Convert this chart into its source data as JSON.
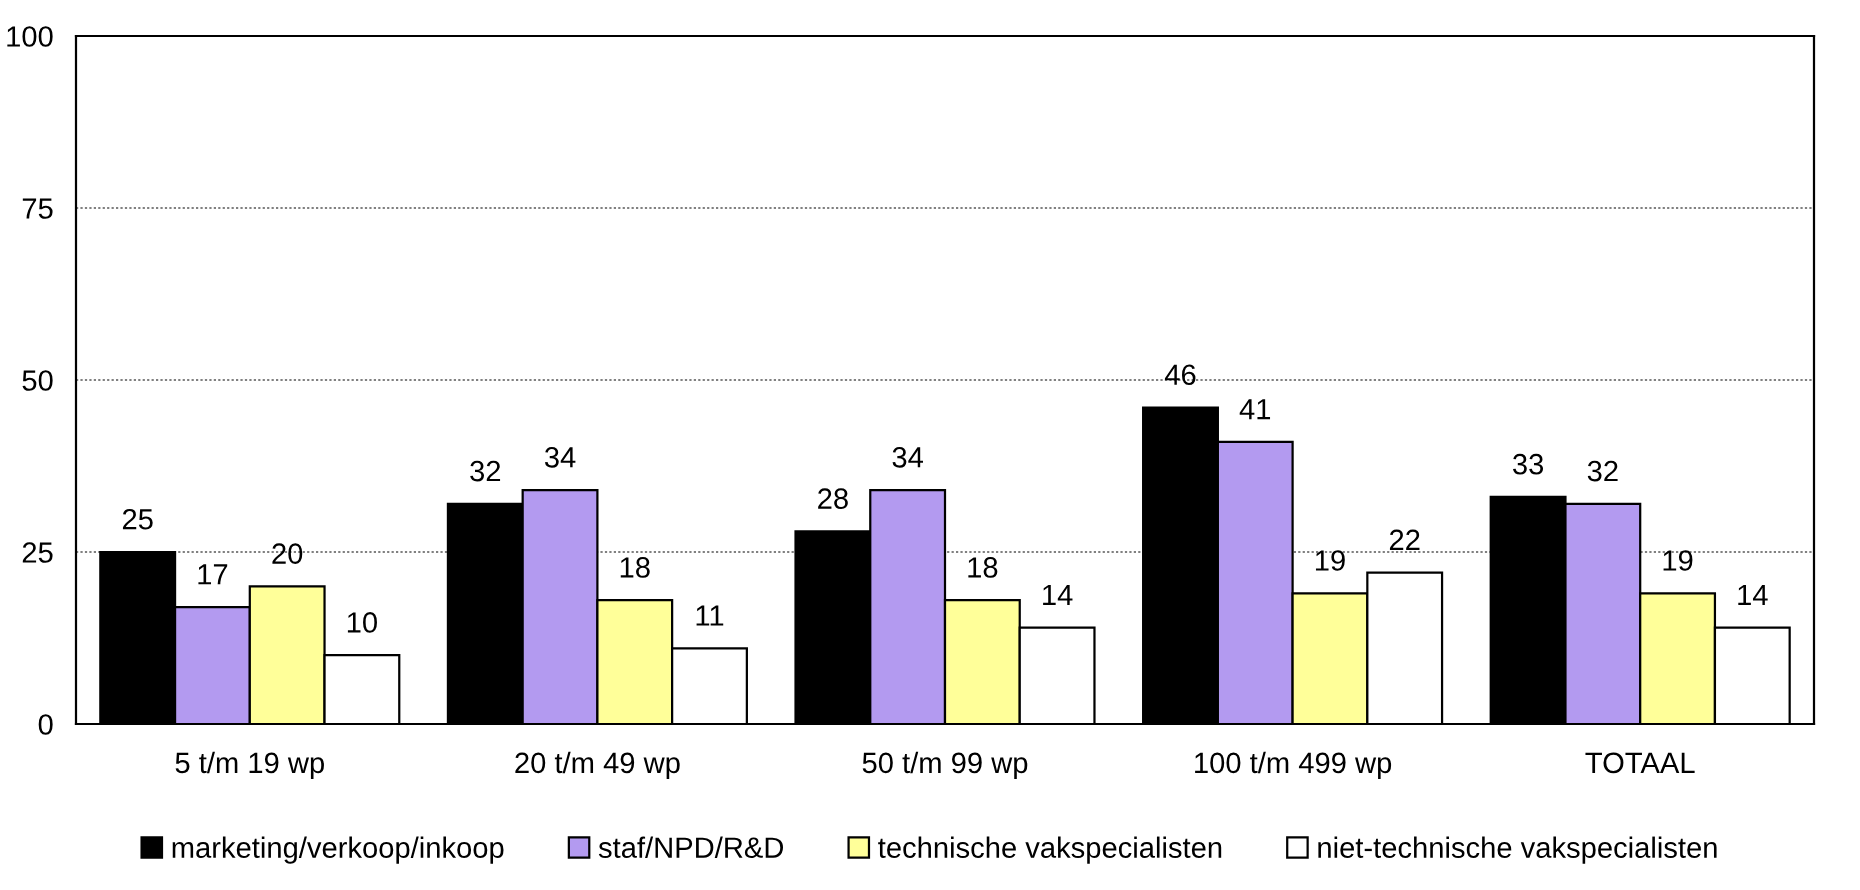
{
  "chart_data": {
    "type": "bar",
    "categories": [
      "5 t/m 19 wp",
      "20 t/m 49 wp",
      "50 t/m 99 wp",
      "100 t/m 499 wp",
      "TOTAAL"
    ],
    "series": [
      {
        "name": "marketing/verkoop/inkoop",
        "color": "#000000",
        "values": [
          25,
          32,
          28,
          46,
          33
        ]
      },
      {
        "name": "staf/NPD/R&D",
        "color": "#b39af0",
        "values": [
          17,
          34,
          34,
          41,
          32
        ]
      },
      {
        "name": "technische vakspecialisten",
        "color": "#ffff99",
        "values": [
          20,
          18,
          18,
          19,
          19
        ]
      },
      {
        "name": "niet-technische vakspecialisten",
        "color": "#ffffff",
        "values": [
          10,
          11,
          14,
          22,
          14
        ]
      }
    ],
    "ylim": [
      0,
      100
    ],
    "yticks": [
      0,
      25,
      50,
      75,
      100
    ],
    "grid": "y",
    "legend": "bottom",
    "data_labels": true
  }
}
